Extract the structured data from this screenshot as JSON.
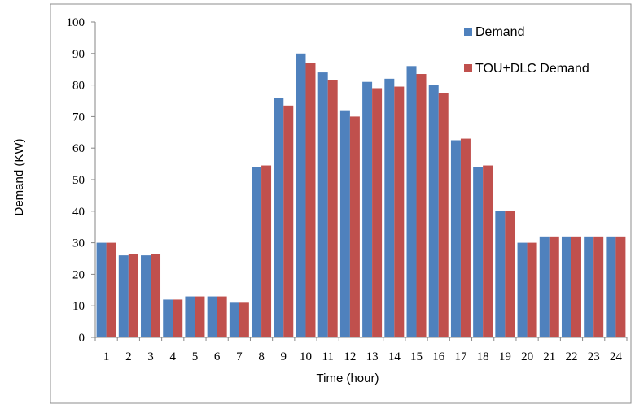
{
  "chart_data": {
    "type": "bar",
    "xlabel": "Time (hour)",
    "ylabel": "Demand (KW)",
    "ylim": [
      0,
      100
    ],
    "yticks": [
      0,
      10,
      20,
      30,
      40,
      50,
      60,
      70,
      80,
      90,
      100
    ],
    "categories": [
      "1",
      "2",
      "3",
      "4",
      "5",
      "6",
      "7",
      "8",
      "9",
      "10",
      "11",
      "12",
      "13",
      "14",
      "15",
      "16",
      "17",
      "18",
      "19",
      "20",
      "21",
      "22",
      "23",
      "24"
    ],
    "series": [
      {
        "name": "Demand",
        "color": "#4F81BD",
        "values": [
          30,
          26,
          26,
          12,
          13,
          13,
          11,
          54,
          76,
          90,
          84,
          72,
          81,
          82,
          86,
          80,
          62.5,
          54,
          40,
          30,
          32,
          32,
          32,
          32
        ]
      },
      {
        "name": "TOU+DLC Demand",
        "color": "#C0504D",
        "values": [
          30,
          26.5,
          26.5,
          12,
          13,
          13,
          11,
          54.5,
          73.5,
          87,
          81.5,
          70,
          79,
          79.5,
          83.5,
          77.5,
          63,
          54.5,
          40,
          30,
          32,
          32,
          32,
          32
        ]
      }
    ],
    "legend_position": "top-right",
    "grid": false
  }
}
